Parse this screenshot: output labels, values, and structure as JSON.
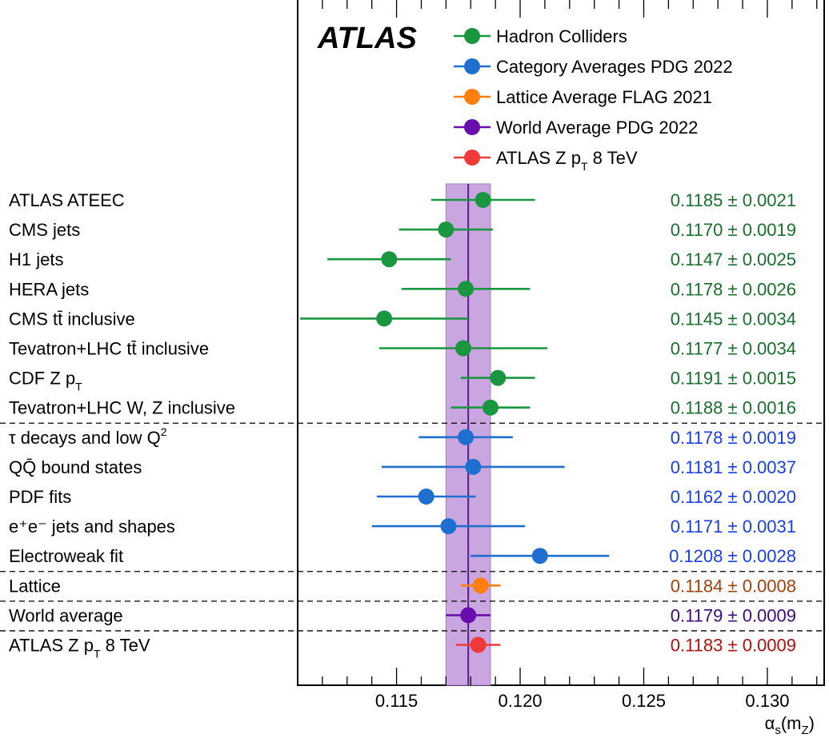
{
  "chart_data": {
    "type": "scatter",
    "title": "",
    "experiment_label": "ATLAS",
    "xlabel": "αs(mZ)",
    "xlabel_parts": {
      "main": "α",
      "sub1": "s",
      "paren_open": "(m",
      "sub2": "Z",
      "paren_close": ")"
    },
    "xlim": [
      0.111,
      0.1323
    ],
    "xticks": [
      {
        "value": 0.115,
        "label": "0.115"
      },
      {
        "value": 0.12,
        "label": "0.120"
      },
      {
        "value": 0.125,
        "label": "0.125"
      },
      {
        "value": 0.13,
        "label": "0.130"
      }
    ],
    "band": {
      "center": 0.1179,
      "low": 0.117,
      "high": 0.1188,
      "color": "#c9a6e0",
      "line_color": "#5c1a8c"
    },
    "pm_symbol": "±",
    "legend": [
      {
        "label": "Hadron Colliders",
        "color": "#1a9641"
      },
      {
        "label": "Category Averages PDG 2022",
        "color": "#1f6fd1"
      },
      {
        "label": "Lattice Average FLAG 2021",
        "color": "#ff7f0e"
      },
      {
        "label": "World Average PDG 2022",
        "color": "#6a0dad"
      },
      {
        "label": "ATLAS Z p",
        "sub": "T",
        "suffix": " 8 TeV",
        "color": "#f03a3a"
      }
    ],
    "measurements": [
      {
        "label": "ATLAS ATEEC",
        "value": 0.1185,
        "err": 0.0021,
        "value_text": "0.1185",
        "err_text": "0.0021",
        "color": "#1a9641",
        "text_color": "#1a6e2e"
      },
      {
        "label": "CMS jets",
        "value": 0.117,
        "err": 0.0019,
        "value_text": "0.1170",
        "err_text": "0.0019",
        "color": "#1a9641",
        "text_color": "#1a6e2e"
      },
      {
        "label": "H1 jets",
        "value": 0.1147,
        "err": 0.0025,
        "value_text": "0.1147",
        "err_text": "0.0025",
        "color": "#1a9641",
        "text_color": "#1a6e2e"
      },
      {
        "label": "HERA jets",
        "value": 0.1178,
        "err": 0.0026,
        "value_text": "0.1178",
        "err_text": "0.0026",
        "color": "#1a9641",
        "text_color": "#1a6e2e"
      },
      {
        "label": "CMS tt̄ inclusive",
        "value": 0.1145,
        "err": 0.0034,
        "value_text": "0.1145",
        "err_text": "0.0034",
        "color": "#1a9641",
        "text_color": "#1a6e2e"
      },
      {
        "label": "Tevatron+LHC tt̄ inclusive",
        "value": 0.1177,
        "err": 0.0034,
        "value_text": "0.1177",
        "err_text": "0.0034",
        "color": "#1a9641",
        "text_color": "#1a6e2e"
      },
      {
        "label": "CDF Z p",
        "sub": "T",
        "value": 0.1191,
        "err": 0.0015,
        "value_text": "0.1191",
        "err_text": "0.0015",
        "color": "#1a9641",
        "text_color": "#1a6e2e"
      },
      {
        "label": "Tevatron+LHC W, Z inclusive",
        "value": 0.1188,
        "err": 0.0016,
        "value_text": "0.1188",
        "err_text": "0.0016",
        "color": "#1a9641",
        "text_color": "#1a6e2e"
      },
      {
        "label": "τ decays and low Q",
        "sup": "2",
        "value": 0.1178,
        "err": 0.0019,
        "value_text": "0.1178",
        "err_text": "0.0019",
        "color": "#1f6fd1",
        "text_color": "#1a3ee6"
      },
      {
        "label": "QQ̄ bound states",
        "value": 0.1181,
        "err": 0.0037,
        "value_text": "0.1181",
        "err_text": "0.0037",
        "color": "#1f6fd1",
        "text_color": "#1a3ee6"
      },
      {
        "label": "PDF fits",
        "value": 0.1162,
        "err": 0.002,
        "value_text": "0.1162",
        "err_text": "0.0020",
        "color": "#1f6fd1",
        "text_color": "#1a3ee6"
      },
      {
        "label": "e⁺e⁻ jets and shapes",
        "value": 0.1171,
        "err": 0.0031,
        "value_text": "0.1171",
        "err_text": "0.0031",
        "color": "#1f6fd1",
        "text_color": "#1a3ee6"
      },
      {
        "label": "Electroweak fit",
        "value": 0.1208,
        "err": 0.0028,
        "value_text": "0.1208",
        "err_text": "0.0028",
        "color": "#1f6fd1",
        "text_color": "#1a3ee6"
      },
      {
        "label": "Lattice",
        "value": 0.1184,
        "err": 0.0008,
        "value_text": "0.1184",
        "err_text": "0.0008",
        "color": "#ff7f0e",
        "text_color": "#a0400a"
      },
      {
        "label": "World average",
        "value": 0.1179,
        "err": 0.0009,
        "value_text": "0.1179",
        "err_text": "0.0009",
        "color": "#6a0dad",
        "text_color": "#3c0a7a"
      },
      {
        "label": "ATLAS Z p",
        "sub": "T",
        "suffix": " 8 TeV",
        "value": 0.1183,
        "err": 0.0009,
        "value_text": "0.1183",
        "err_text": "0.0009",
        "color": "#f03a3a",
        "text_color": "#b01010"
      }
    ],
    "separators_after": [
      "Tevatron+LHC W, Z inclusive",
      "Electroweak fit",
      "Lattice",
      "World average"
    ],
    "grid": false
  }
}
